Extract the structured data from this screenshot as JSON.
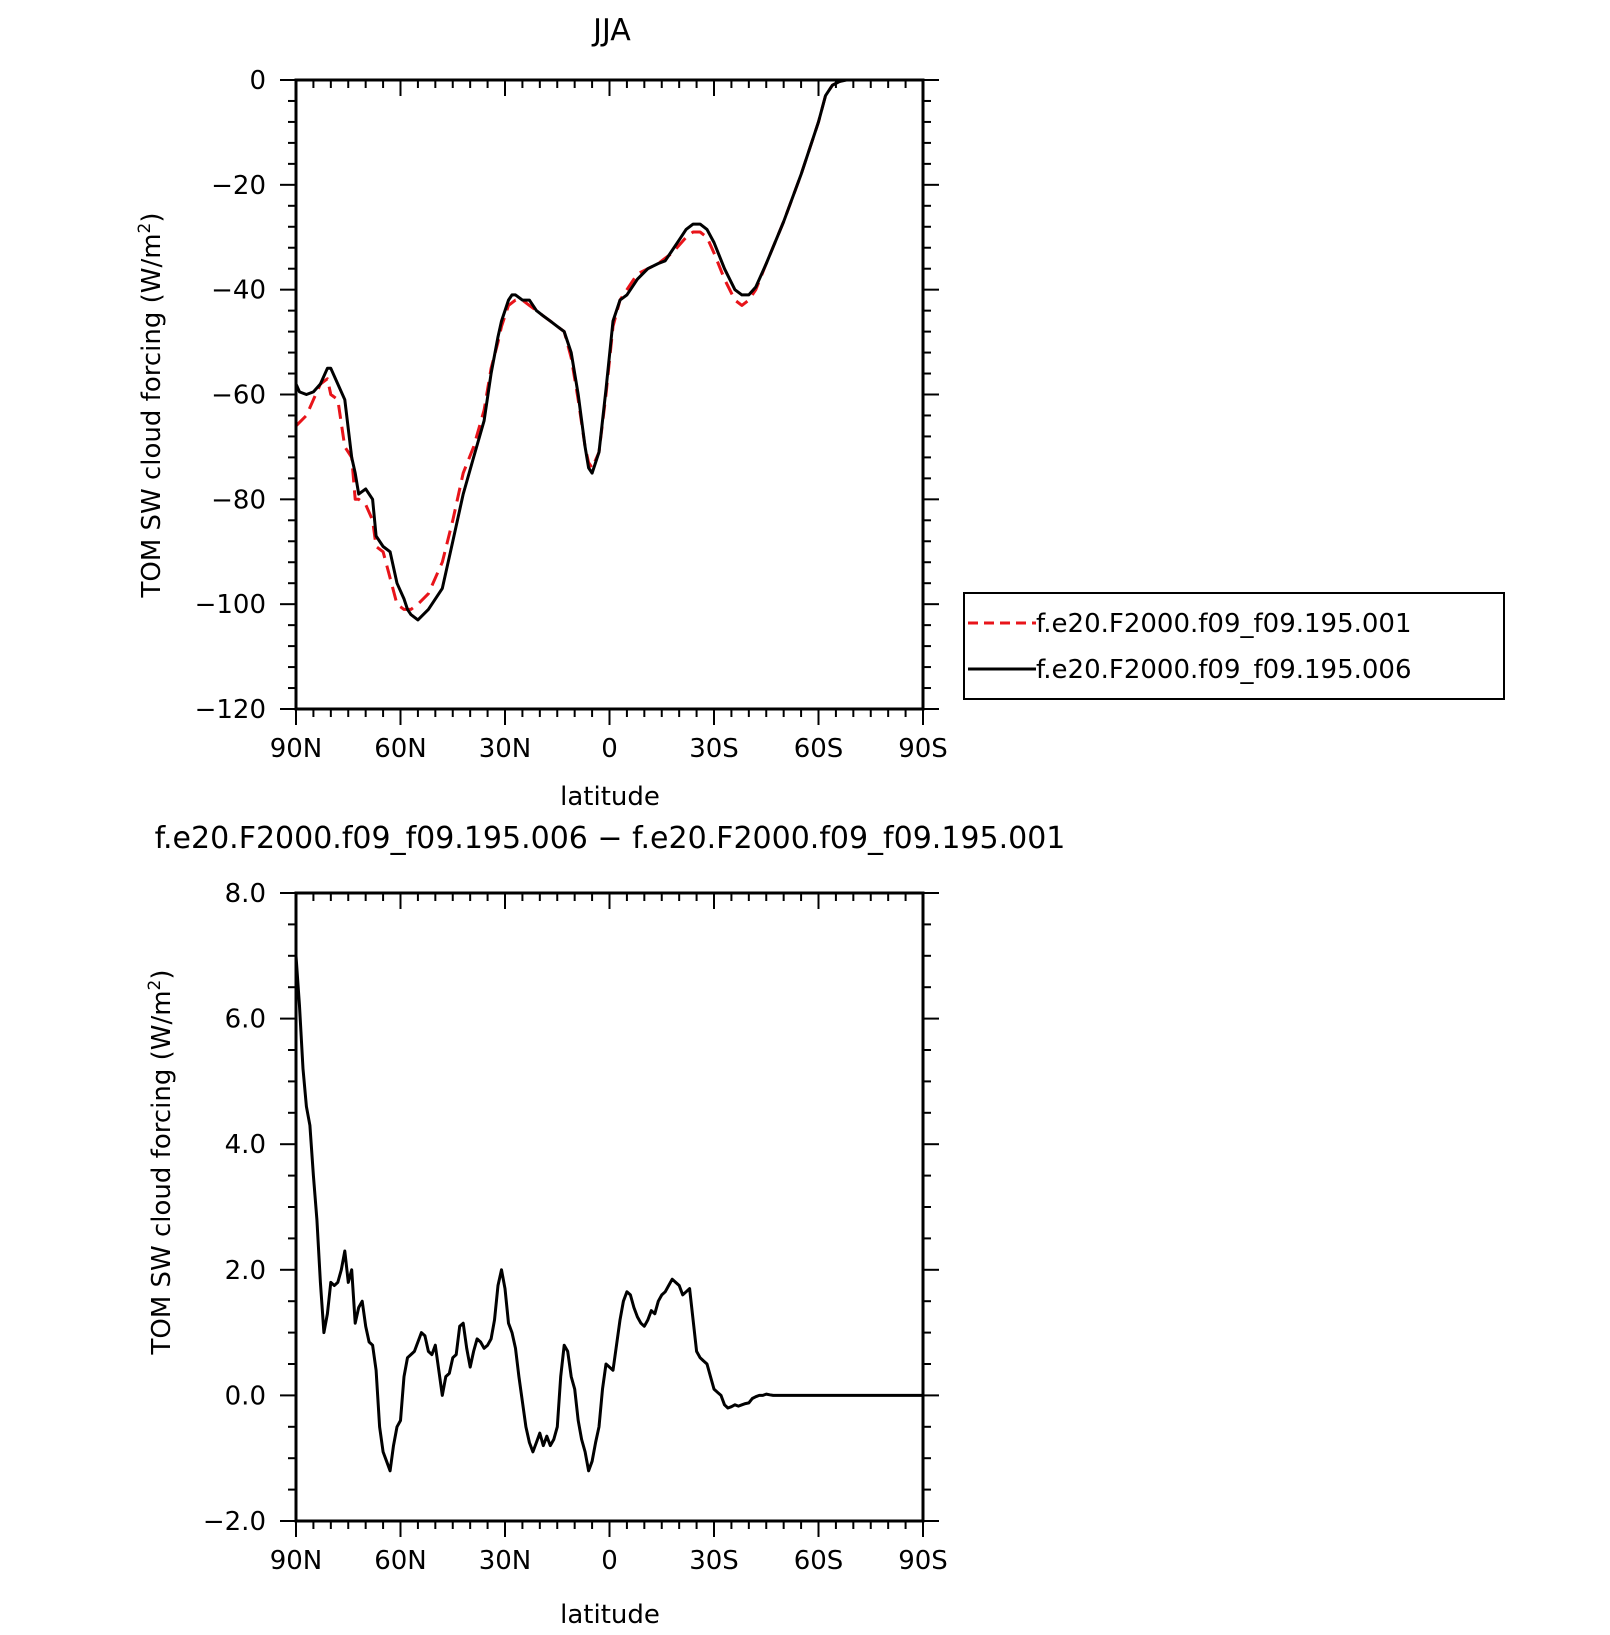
{
  "colors": {
    "series_001": "#e8141a",
    "series_006": "#000000",
    "diff": "#000000",
    "axis": "#000000"
  },
  "chart_data": [
    {
      "type": "line",
      "title": "JJA",
      "xlabel": "latitude",
      "ylabel": "TOM SW cloud forcing (W/m²)",
      "ylabel_main": "TOM SW cloud forcing (W/m",
      "ylabel_sup": "2",
      "ylabel_close": ")",
      "xlim": [
        90,
        -90
      ],
      "ylim": [
        -120,
        0
      ],
      "xticks": [
        90,
        60,
        30,
        0,
        -30,
        -60,
        -90
      ],
      "xtick_labels": [
        "90N",
        "60N",
        "30N",
        "0",
        "30S",
        "60S",
        "90S"
      ],
      "yticks": [
        0,
        -20,
        -40,
        -60,
        -80,
        -100,
        -120
      ],
      "ytick_labels": [
        "0",
        "−20",
        "−40",
        "−60",
        "−80",
        "−100",
        "−120"
      ],
      "grid": false,
      "legend": "right",
      "series": [
        {
          "name": "f.e20.F2000.f09_f09.195.001",
          "style": "dashed",
          "x": [
            90,
            87,
            85,
            83,
            81,
            80,
            78,
            76,
            74,
            73,
            72,
            70,
            68,
            67,
            65,
            63,
            61,
            59,
            57,
            55,
            52,
            48,
            45,
            42,
            39,
            36,
            34,
            32,
            31,
            30,
            29,
            27,
            25,
            23,
            21,
            19,
            17,
            15,
            13,
            11,
            9,
            7,
            6,
            5,
            3,
            1,
            -1,
            -3,
            -5,
            -8,
            -11,
            -14,
            -16,
            -18,
            -20,
            -22,
            -24,
            -26,
            -28,
            -30,
            -33,
            -36,
            -38,
            -40,
            -42,
            -45,
            -50,
            -55,
            -60,
            -62,
            -64,
            -66,
            -68,
            -70,
            -75,
            -80,
            -90
          ],
          "y": [
            -66,
            -64,
            -61,
            -58,
            -57,
            -60,
            -61,
            -70,
            -72,
            -80,
            -80,
            -81,
            -84,
            -89,
            -90,
            -95,
            -100,
            -101,
            -101,
            -100,
            -98,
            -92,
            -84,
            -75,
            -70,
            -63,
            -55,
            -50,
            -47,
            -45,
            -43,
            -42,
            -42,
            -43,
            -44,
            -45,
            -46,
            -47,
            -48,
            -53,
            -61,
            -70,
            -73,
            -74,
            -71,
            -60,
            -47,
            -42,
            -40,
            -37,
            -36,
            -35,
            -34,
            -33,
            -31.5,
            -30,
            -29,
            -29,
            -30,
            -33,
            -38,
            -42,
            -43,
            -42,
            -40,
            -35,
            -27,
            -18,
            -8,
            -3,
            -1,
            -0.3,
            0,
            0,
            0,
            0,
            0
          ]
        },
        {
          "name": "f.e20.F2000.f09_f09.195.006",
          "style": "solid",
          "x": [
            90,
            89,
            87,
            85,
            83,
            81,
            80,
            78,
            76,
            74,
            73,
            72,
            70,
            68,
            67,
            65,
            63,
            61,
            59,
            58,
            57,
            55,
            52,
            48,
            45,
            42,
            39,
            36,
            34,
            32,
            31,
            30,
            29,
            28,
            27,
            25,
            23,
            21,
            19,
            17,
            15,
            13,
            11,
            9,
            7,
            6,
            5,
            3,
            1,
            -1,
            -3,
            -5,
            -8,
            -11,
            -14,
            -16,
            -18,
            -20,
            -22,
            -24,
            -26,
            -28,
            -30,
            -33,
            -36,
            -38,
            -40,
            -42,
            -45,
            -50,
            -55,
            -60,
            -62,
            -64,
            -66,
            -68,
            -70,
            -75,
            -80,
            -90
          ],
          "y": [
            -58,
            -59.5,
            -60,
            -59.5,
            -58,
            -55,
            -55,
            -58,
            -61,
            -72,
            -75,
            -79,
            -78,
            -80,
            -87,
            -89,
            -90,
            -96,
            -99,
            -101,
            -102,
            -103,
            -101,
            -97,
            -88,
            -79,
            -72,
            -65,
            -56,
            -49,
            -46,
            -44,
            -42,
            -41,
            -41,
            -42,
            -42,
            -44,
            -45,
            -46,
            -47,
            -48,
            -52,
            -60,
            -70,
            -74,
            -75,
            -71,
            -59,
            -46,
            -42,
            -41,
            -38,
            -36,
            -35,
            -34.5,
            -32.5,
            -30.5,
            -28.5,
            -27.5,
            -27.5,
            -28.5,
            -31,
            -36,
            -40,
            -41,
            -41,
            -39.5,
            -35,
            -27,
            -18,
            -8,
            -3,
            -1,
            -0.3,
            0,
            0,
            0,
            0,
            0
          ]
        }
      ]
    },
    {
      "type": "line",
      "title": "f.e20.F2000.f09_f09.195.006 − f.e20.F2000.f09_f09.195.001",
      "xlabel": "latitude",
      "ylabel": "TOM SW cloud forcing (W/m²)",
      "ylabel_main": "TOM SW cloud forcing (W/m",
      "ylabel_sup": "2",
      "ylabel_close": ")",
      "xlim": [
        90,
        -90
      ],
      "ylim": [
        -2.0,
        8.0
      ],
      "xticks": [
        90,
        60,
        30,
        0,
        -30,
        -60,
        -90
      ],
      "xtick_labels": [
        "90N",
        "60N",
        "30N",
        "0",
        "30S",
        "60S",
        "90S"
      ],
      "yticks": [
        8,
        6,
        4,
        2,
        0,
        -2
      ],
      "ytick_labels": [
        "8.0",
        "6.0",
        "4.0",
        "2.0",
        "0.0",
        "−2.0"
      ],
      "grid": false,
      "series": [
        {
          "x": [
            90,
            89,
            88,
            87,
            86,
            85,
            84,
            83,
            82,
            81,
            80,
            79,
            78,
            77,
            76,
            75,
            74,
            73,
            72,
            71,
            70,
            69,
            68,
            67,
            66,
            65,
            64,
            63,
            62,
            61,
            60,
            59,
            58,
            57,
            56,
            55,
            54,
            53,
            52,
            51,
            50,
            49,
            48,
            47,
            46,
            45,
            44,
            43,
            42,
            41,
            40,
            39,
            38,
            37,
            36,
            35,
            34,
            33,
            32,
            31,
            30,
            29,
            28,
            27,
            26,
            25,
            24,
            23,
            22,
            21,
            20,
            19,
            18,
            17,
            16,
            15,
            14,
            13,
            12,
            11,
            10,
            9,
            8,
            7,
            6,
            5,
            4,
            3,
            2,
            1,
            0,
            -1,
            -2,
            -3,
            -4,
            -5,
            -6,
            -7,
            -8,
            -9,
            -10,
            -11,
            -12,
            -13,
            -14,
            -15,
            -16,
            -17,
            -18,
            -19,
            -20,
            -21,
            -22,
            -23,
            -24,
            -25,
            -26,
            -27,
            -28,
            -29,
            -30,
            -31,
            -32,
            -33,
            -34,
            -35,
            -36,
            -37,
            -38,
            -39,
            -40,
            -41,
            -42,
            -43,
            -44,
            -45,
            -46,
            -47,
            -48,
            -49,
            -50,
            -51,
            -52,
            -53,
            -54,
            -55,
            -56,
            -57,
            -58,
            -59,
            -60,
            -62,
            -64,
            -66,
            -70,
            -75,
            -80,
            -85,
            -90
          ],
          "y": [
            7.0,
            6.2,
            5.2,
            4.6,
            4.3,
            3.5,
            2.8,
            1.8,
            1.0,
            1.3,
            1.8,
            1.75,
            1.8,
            2.0,
            2.3,
            1.8,
            2.0,
            1.15,
            1.4,
            1.5,
            1.1,
            0.85,
            0.8,
            0.4,
            -0.5,
            -0.9,
            -1.05,
            -1.2,
            -0.8,
            -0.5,
            -0.4,
            0.3,
            0.6,
            0.65,
            0.7,
            0.85,
            1.0,
            0.95,
            0.7,
            0.65,
            0.8,
            0.4,
            0.0,
            0.3,
            0.35,
            0.6,
            0.65,
            1.1,
            1.15,
            0.75,
            0.45,
            0.7,
            0.9,
            0.85,
            0.75,
            0.8,
            0.9,
            1.2,
            1.75,
            2.0,
            1.7,
            1.15,
            1.0,
            0.75,
            0.3,
            -0.1,
            -0.5,
            -0.75,
            -0.9,
            -0.75,
            -0.6,
            -0.8,
            -0.65,
            -0.8,
            -0.7,
            -0.5,
            0.3,
            0.8,
            0.7,
            0.3,
            0.1,
            -0.4,
            -0.7,
            -0.9,
            -1.2,
            -1.05,
            -0.75,
            -0.5,
            0.1,
            0.5,
            0.45,
            0.4,
            0.8,
            1.2,
            1.5,
            1.65,
            1.6,
            1.4,
            1.25,
            1.15,
            1.1,
            1.2,
            1.35,
            1.3,
            1.5,
            1.6,
            1.65,
            1.75,
            1.85,
            1.8,
            1.75,
            1.6,
            1.65,
            1.7,
            1.2,
            0.7,
            0.6,
            0.55,
            0.5,
            0.3,
            0.1,
            0.05,
            0.0,
            -0.15,
            -0.2,
            -0.18,
            -0.15,
            -0.17,
            -0.15,
            -0.13,
            -0.12,
            -0.05,
            -0.02,
            0.0,
            0.0,
            0.02,
            0.01,
            0.0,
            0.0,
            0.0,
            0.0,
            0.0,
            0.0,
            0.0,
            0.0,
            0.0,
            0.0,
            0.0,
            0.0,
            0.0,
            0.0,
            0.0,
            0.0,
            0.0,
            0.0,
            0.0,
            0.0,
            0.0,
            0.0
          ]
        }
      ]
    }
  ]
}
